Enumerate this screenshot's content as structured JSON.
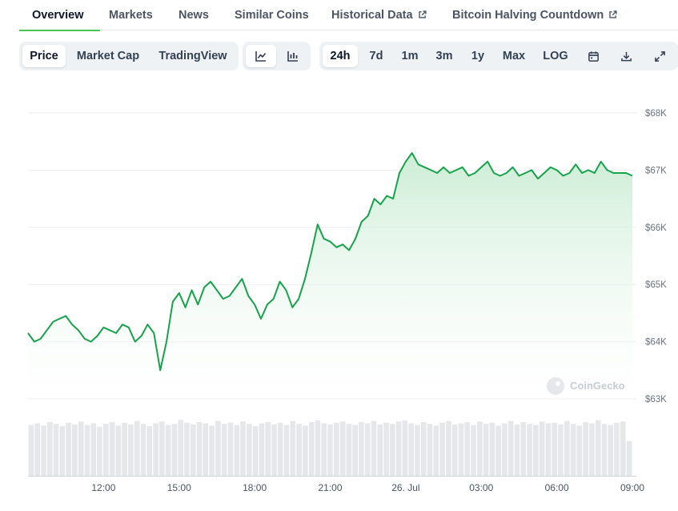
{
  "tabs": [
    {
      "label": "Overview",
      "active": true,
      "external": false
    },
    {
      "label": "Markets",
      "active": false,
      "external": false
    },
    {
      "label": "News",
      "active": false,
      "external": false
    },
    {
      "label": "Similar Coins",
      "active": false,
      "external": false
    },
    {
      "label": "Historical Data",
      "active": false,
      "external": true
    },
    {
      "label": "Bitcoin Halving Countdown",
      "active": false,
      "external": true
    }
  ],
  "chart_type_toggle": {
    "options": [
      "Price",
      "Market Cap",
      "TradingView"
    ],
    "selected": "Price"
  },
  "chart_style_toggle": {
    "options": [
      "line-chart-icon",
      "candlestick-icon"
    ],
    "selected": "line-chart-icon"
  },
  "range_toggle": {
    "options": [
      "24h",
      "7d",
      "1m",
      "3m",
      "1y",
      "Max",
      "LOG"
    ],
    "selected": "24h",
    "icons": [
      "calendar-icon",
      "download-icon",
      "expand-icon"
    ]
  },
  "watermark": "CoinGecko",
  "colors": {
    "line": "#16a34a",
    "area_top": "#c9ecd3",
    "volume": "#e5e7eb",
    "accent": "#4cc355"
  },
  "chart_data": {
    "type": "area",
    "title": "",
    "xlabel": "",
    "ylabel": "",
    "y_unit": "USD",
    "ylim": [
      62850,
      68100
    ],
    "y_ticks": [
      {
        "value": 68000,
        "label": "$68K"
      },
      {
        "value": 67000,
        "label": "$67K"
      },
      {
        "value": 66000,
        "label": "$66K"
      },
      {
        "value": 65000,
        "label": "$65K"
      },
      {
        "value": 64000,
        "label": "$64K"
      },
      {
        "value": 63000,
        "label": "$63K"
      }
    ],
    "x_range_hours": [
      0,
      24.4
    ],
    "x_ticks": [
      {
        "t": 3,
        "label": "12:00"
      },
      {
        "t": 6,
        "label": "15:00"
      },
      {
        "t": 9,
        "label": "18:00"
      },
      {
        "t": 12,
        "label": "21:00"
      },
      {
        "t": 15,
        "label": "26. Jul"
      },
      {
        "t": 18,
        "label": "03:00"
      },
      {
        "t": 21,
        "label": "06:00"
      },
      {
        "t": 24,
        "label": "09:00"
      }
    ],
    "grid": true,
    "series": [
      {
        "t": [
          0,
          0.25,
          0.5,
          0.75,
          1.0,
          1.25,
          1.5,
          1.75,
          2.0,
          2.25,
          2.5,
          2.75,
          3.0,
          3.25,
          3.5,
          3.75,
          4.0,
          4.25,
          4.5,
          4.75,
          5.0,
          5.25,
          5.5,
          5.75,
          6.0,
          6.25,
          6.5,
          6.75,
          7.0,
          7.25,
          7.5,
          7.75,
          8.0,
          8.25,
          8.5,
          8.75,
          9.0,
          9.25,
          9.5,
          9.75,
          10.0,
          10.25,
          10.5,
          10.75,
          11.0,
          11.25,
          11.5,
          11.75,
          12.0,
          12.25,
          12.5,
          12.75,
          13.0,
          13.25,
          13.5,
          13.75,
          14.0,
          14.25,
          14.5,
          14.75,
          15.0,
          15.25,
          15.5,
          15.75,
          16.0,
          16.25,
          16.5,
          16.75,
          17.0,
          17.25,
          17.5,
          17.75,
          18.0,
          18.25,
          18.5,
          18.75,
          19.0,
          19.25,
          19.5,
          19.75,
          20.0,
          20.25,
          20.5,
          20.75,
          21.0,
          21.25,
          21.5,
          21.75,
          22.0,
          22.25,
          22.5,
          22.75,
          23.0,
          23.25,
          23.5,
          23.75,
          24.0
        ],
        "values": [
          64150,
          64000,
          64050,
          64200,
          64350,
          64400,
          64450,
          64300,
          64200,
          64050,
          64000,
          64100,
          64250,
          64200,
          64150,
          64300,
          64250,
          64000,
          64100,
          64300,
          64150,
          63500,
          64000,
          64700,
          64850,
          64600,
          64900,
          64650,
          64950,
          65050,
          64900,
          64750,
          64800,
          64950,
          65100,
          64800,
          64650,
          64400,
          64650,
          64750,
          65050,
          64900,
          64600,
          64750,
          65100,
          65550,
          66050,
          65800,
          65750,
          65650,
          65700,
          65600,
          65800,
          66100,
          66200,
          66500,
          66400,
          66550,
          66500,
          66950,
          67150,
          67300,
          67100,
          67050,
          67000,
          66950,
          67050,
          66950,
          67000,
          67050,
          66900,
          66950,
          67050,
          67150,
          66950,
          66900,
          66950,
          67050,
          66900,
          66950,
          67000,
          66850,
          66950,
          67050,
          67000,
          66900,
          66950,
          67100,
          66950,
          67000,
          66950,
          67150,
          67000,
          66950,
          66950,
          66950,
          66900
        ]
      }
    ],
    "volume_relative": [
      0.88,
      0.91,
      0.87,
      0.93,
      0.9,
      0.86,
      0.92,
      0.89,
      0.94,
      0.88,
      0.91,
      0.85,
      0.9,
      0.93,
      0.87,
      0.92,
      0.89,
      0.95,
      0.9,
      0.86,
      0.91,
      0.94,
      0.88,
      0.9,
      0.97,
      0.92,
      0.89,
      0.93,
      0.91,
      0.87,
      0.95,
      0.9,
      0.92,
      0.88,
      0.94,
      0.9,
      0.86,
      0.91,
      0.93,
      0.89,
      0.92,
      0.88,
      0.95,
      0.9,
      0.87,
      0.93,
      0.96,
      0.91,
      0.89,
      0.92,
      0.94,
      0.9,
      0.88,
      0.93,
      0.91,
      0.95,
      0.89,
      0.92,
      0.9,
      0.94,
      0.96,
      0.91,
      0.88,
      0.93,
      0.9,
      0.87,
      0.92,
      0.95,
      0.89,
      0.91,
      0.93,
      0.88,
      0.94,
      0.9,
      0.92,
      0.87,
      0.91,
      0.95,
      0.89,
      0.93,
      0.9,
      0.88,
      0.94,
      0.91,
      0.92,
      0.89,
      0.95,
      0.9,
      0.87,
      0.93,
      0.91,
      0.96,
      0.9,
      0.88,
      0.92,
      0.94,
      0.6
    ]
  }
}
